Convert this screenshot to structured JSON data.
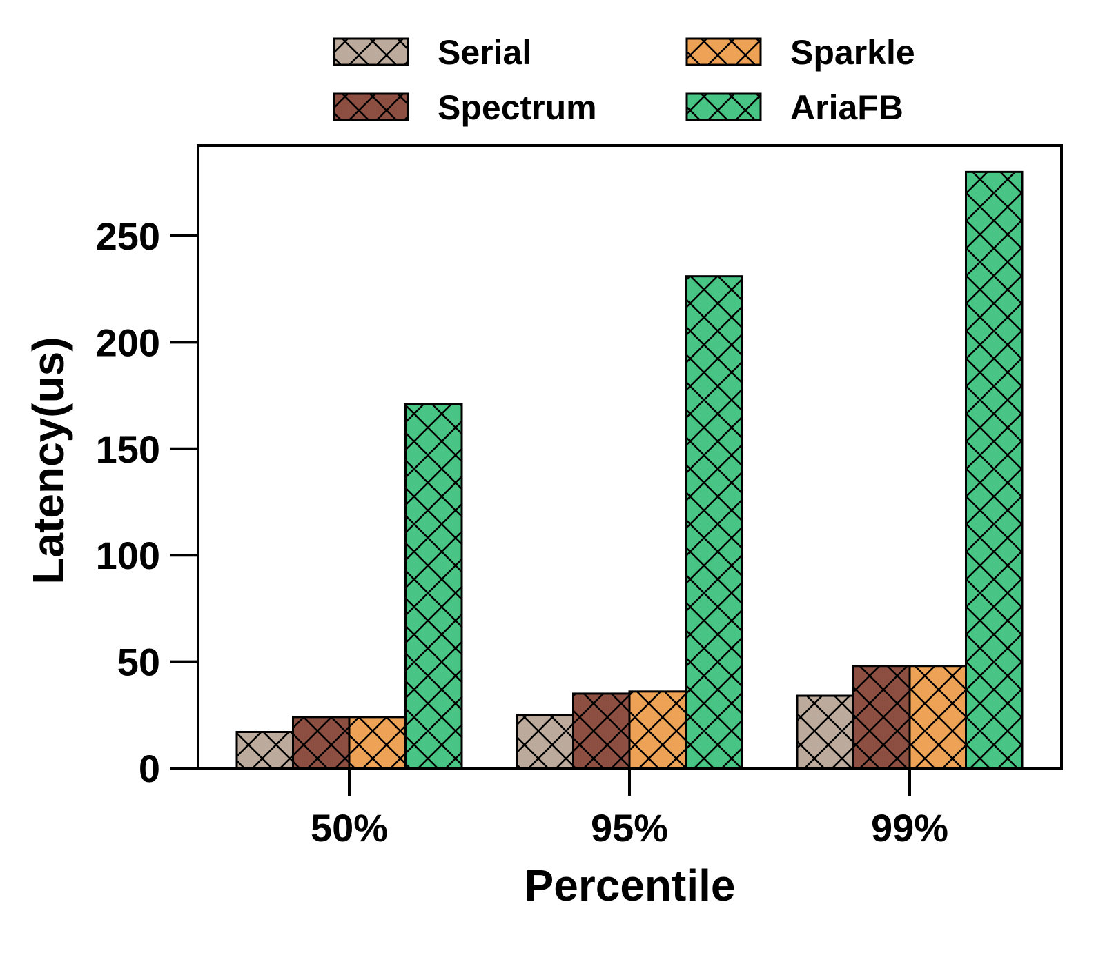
{
  "chart_data": {
    "type": "bar",
    "title": "",
    "xlabel": "Percentile",
    "ylabel": "Latency(us)",
    "categories": [
      "50%",
      "95%",
      "99%"
    ],
    "ylim": [
      0,
      295
    ],
    "yticks": [
      0,
      50,
      100,
      150,
      200,
      250
    ],
    "grid": false,
    "legend_position": "top",
    "series": [
      {
        "name": "Serial",
        "values": [
          17,
          25,
          34
        ],
        "color": "#bcaa9d",
        "hatch": "cross"
      },
      {
        "name": "Spectrum",
        "values": [
          24,
          35,
          48
        ],
        "color": "#8d4f42",
        "hatch": "cross"
      },
      {
        "name": "Sparkle",
        "values": [
          24,
          36,
          48
        ],
        "color": "#eea255",
        "hatch": "cross"
      },
      {
        "name": "AriaFB",
        "values": [
          171,
          231,
          280
        ],
        "color": "#48c585",
        "hatch": "cross"
      }
    ]
  }
}
